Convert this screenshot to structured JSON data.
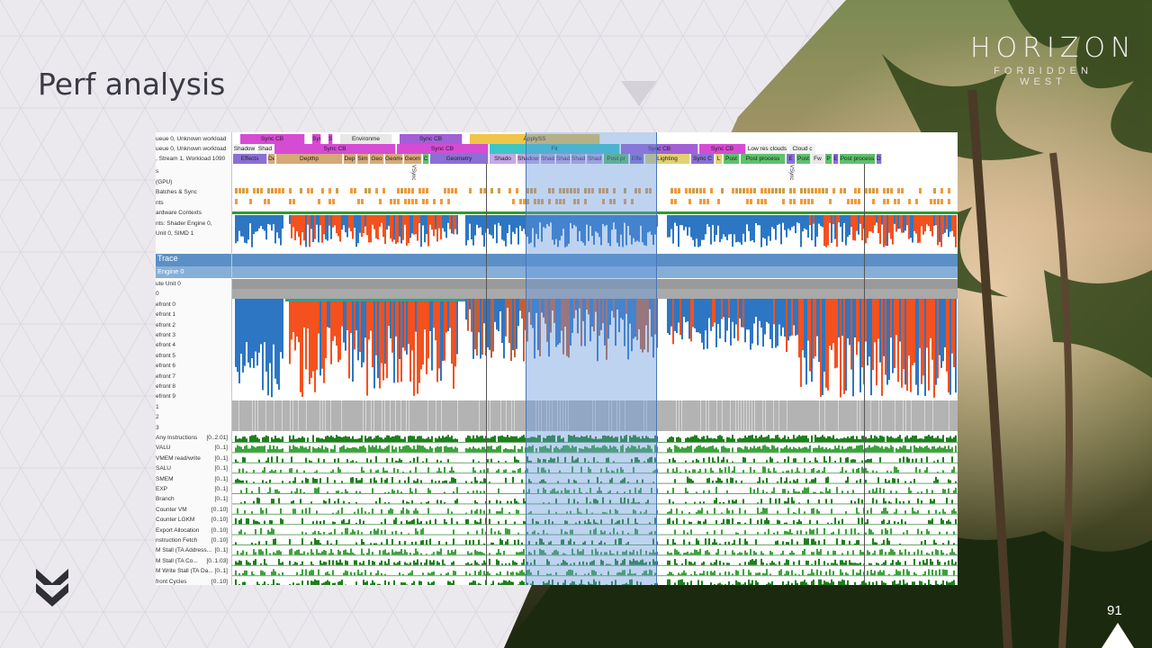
{
  "slide": {
    "title": "Perf analysis",
    "page_number": "91",
    "logo_main": "HORIZON",
    "logo_sub": "FORBIDDEN WEST"
  },
  "profiler": {
    "queue_rows": [
      {
        "label": "ueue 0, Unknown workload",
        "segments": [
          {
            "text": "Sync CB",
            "color": "#d64bd4"
          },
          {
            "text": "Syn",
            "color": "#d64bd4"
          },
          {
            "text": "Sync CB",
            "color": "#d64bd4"
          },
          {
            "text": "Environme",
            "color": "#e8e8e8"
          },
          {
            "text": "Sync CB",
            "color": "#a35fd6"
          },
          {
            "text": "ApplySS",
            "color": "#f0c54a"
          }
        ]
      },
      {
        "label": "ueue 0, Unknown workload",
        "segments": [
          {
            "text": "Shadow",
            "color": "#f2f2f2"
          },
          {
            "text": "Shad",
            "color": "#f2f2f2"
          },
          {
            "text": "Sync CB",
            "color": "#d64bd4"
          },
          {
            "text": "Sync CB",
            "color": "#d64bd4"
          },
          {
            "text": "Fit",
            "color": "#3bc6c6"
          },
          {
            "text": "Sync CB",
            "color": "#a35fd6"
          },
          {
            "text": "Sync CB",
            "color": "#d64bd4"
          },
          {
            "text": "Low res clouds",
            "color": "#f2f2f2"
          },
          {
            "text": "Cloud c",
            "color": "#f2f2f2"
          }
        ]
      },
      {
        "label": ", Stream 1, Workload 1090",
        "segments": [
          {
            "text": "Effects",
            "color": "#8a6fd6"
          },
          {
            "text": "Depthprime",
            "color": "#d6a978"
          },
          {
            "text": "Depthp",
            "color": "#d6a978"
          },
          {
            "text": "Dep",
            "color": "#d6a978"
          },
          {
            "text": "Sim",
            "color": "#d6a978"
          },
          {
            "text": "Geo",
            "color": "#d6a978"
          },
          {
            "text": "Geomet",
            "color": "#d6a978"
          },
          {
            "text": "Geom",
            "color": "#d6a978"
          },
          {
            "text": "C",
            "color": "#5cc26b"
          },
          {
            "text": "Geometry",
            "color": "#8a6fd6"
          },
          {
            "text": "Shado",
            "color": "#c4a8e8"
          },
          {
            "text": "Shadows",
            "color": "#c4a8e8"
          },
          {
            "text": "Shad",
            "color": "#c4a8e8"
          },
          {
            "text": "Shad",
            "color": "#c4a8e8"
          },
          {
            "text": "Shad",
            "color": "#c4a8e8"
          },
          {
            "text": "Shad",
            "color": "#c4a8e8"
          },
          {
            "text": "Post pr",
            "color": "#5cc26b"
          },
          {
            "text": "Effe",
            "color": "#8a6fd6"
          },
          {
            "text": "Lighting",
            "color": "#e2d272"
          },
          {
            "text": "Sync C",
            "color": "#8a6fd6"
          },
          {
            "text": "L",
            "color": "#e2d272"
          },
          {
            "text": "Post",
            "color": "#5cc26b"
          },
          {
            "text": "Post process",
            "color": "#5cc26b"
          },
          {
            "text": "E",
            "color": "#8a6fd6"
          },
          {
            "text": "Post",
            "color": "#5cc26b"
          },
          {
            "text": "Fw",
            "color": "#e8e8e8"
          },
          {
            "text": "P",
            "color": "#5cc26b"
          },
          {
            "text": "E",
            "color": "#8a6fd6"
          },
          {
            "text": "Post process",
            "color": "#5cc26b"
          },
          {
            "text": "De",
            "color": "#8a6fd6"
          }
        ]
      }
    ],
    "upper_labels": [
      {
        "text": "s"
      },
      {
        "text": "(GPU)"
      },
      {
        "text": "Batches & Sync"
      },
      {
        "text": "nts"
      },
      {
        "text": "ardware Contexts"
      },
      {
        "text": "nts: Shader Engine 0,"
      },
      {
        "text": "Unit 0, SIMD 1"
      }
    ],
    "vsync_label": "VSync",
    "trace_header": "Trace",
    "engine_header": "Engine 0",
    "lower_labels": [
      {
        "text": "ute Unit 0",
        "range": ""
      },
      {
        "text": "0",
        "range": ""
      },
      {
        "text": "efront 0",
        "range": ""
      },
      {
        "text": "efront 1",
        "range": ""
      },
      {
        "text": "efront 2",
        "range": ""
      },
      {
        "text": "efront 3",
        "range": ""
      },
      {
        "text": "efront 4",
        "range": ""
      },
      {
        "text": "efront 5",
        "range": ""
      },
      {
        "text": "efront 6",
        "range": ""
      },
      {
        "text": "efront 7",
        "range": ""
      },
      {
        "text": "efront 8",
        "range": ""
      },
      {
        "text": "efront 9",
        "range": ""
      },
      {
        "text": "1",
        "range": ""
      },
      {
        "text": "2",
        "range": ""
      },
      {
        "text": "3",
        "range": ""
      },
      {
        "text": "Any Instructions",
        "range": "[0..2.01]"
      },
      {
        "text": "VALU",
        "range": "[0..1]"
      },
      {
        "text": "VMEM read/write",
        "range": "[0..1]"
      },
      {
        "text": "SALU",
        "range": "[0..1]"
      },
      {
        "text": "SMEM",
        "range": "[0..1]"
      },
      {
        "text": "EXP",
        "range": "[0..1]"
      },
      {
        "text": "Branch",
        "range": "[0..1]"
      },
      {
        "text": "Counter VM",
        "range": "[0..10]"
      },
      {
        "text": "Counter LGKM",
        "range": "[0..10]"
      },
      {
        "text": "Export Allocation",
        "range": "[0..10]"
      },
      {
        "text": "nstruction Fetch",
        "range": "[0..10]"
      },
      {
        "text": "M Stall (TA Address...",
        "range": "[0..1]"
      },
      {
        "text": "M Stall (TA Co...",
        "range": "[0..1.03]"
      },
      {
        "text": "M Write Stall (TA Da...",
        "range": "[0..1]"
      },
      {
        "text": "front Cycles",
        "range": "[0..10]"
      }
    ],
    "colors": {
      "orange": "#f4511e",
      "blue": "#2d76c4",
      "green": "#2e9b2e",
      "gray": "#a9a9a9",
      "teal": "#3a9a8a"
    }
  }
}
